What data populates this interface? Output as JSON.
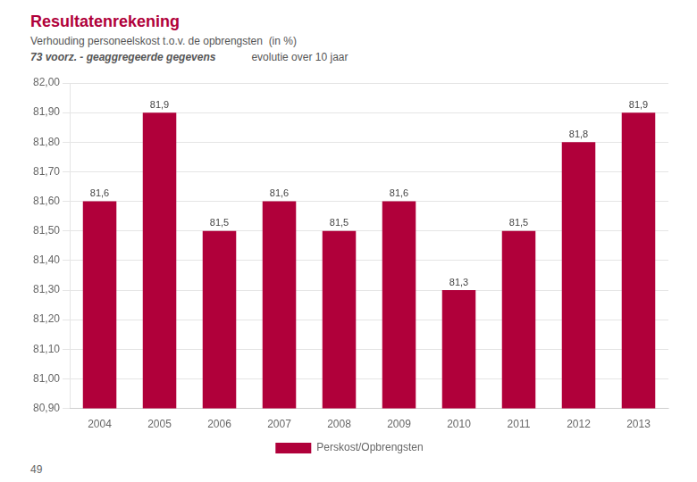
{
  "chart_data": {
    "type": "bar",
    "title": "Resultatenrekening",
    "subtitle": [
      "Verhouding personeelskost t.o.v. de opbrengsten  (in %)",
      "73 voorz. - geaggregeerde gegevens",
      "evolutie over 10 jaar"
    ],
    "annotations": [
      "49"
    ],
    "categories": [
      "2004",
      "2005",
      "2006",
      "2007",
      "2008",
      "2009",
      "2010",
      "2011",
      "2012",
      "2013"
    ],
    "series": [
      {
        "name": "Perskost/Opbrengsten",
        "color": "#b0003a",
        "values": [
          81.6,
          81.9,
          81.5,
          81.6,
          81.5,
          81.6,
          81.3,
          81.5,
          81.8,
          81.9
        ],
        "value_labels": [
          "81,6",
          "81,9",
          "81,5",
          "81,6",
          "81,5",
          "81,6",
          "81,3",
          "81,5",
          "81,8",
          "81,9"
        ]
      }
    ],
    "ylim": [
      80.9,
      82.0
    ],
    "yticks": [
      {
        "value": 80.9,
        "label": "80,90"
      },
      {
        "value": 81.0,
        "label": "81,00"
      },
      {
        "value": 81.1,
        "label": "81,10"
      },
      {
        "value": 81.2,
        "label": "81,20"
      },
      {
        "value": 81.3,
        "label": "81,30"
      },
      {
        "value": 81.4,
        "label": "81,40"
      },
      {
        "value": 81.5,
        "label": "81,50"
      },
      {
        "value": 81.6,
        "label": "81,60"
      },
      {
        "value": 81.7,
        "label": "81,70"
      },
      {
        "value": 81.8,
        "label": "81,80"
      },
      {
        "value": 81.9,
        "label": "81,90"
      },
      {
        "value": 82.0,
        "label": "82,00"
      }
    ],
    "grid": true,
    "legend": "bottom",
    "data_labels": true
  }
}
